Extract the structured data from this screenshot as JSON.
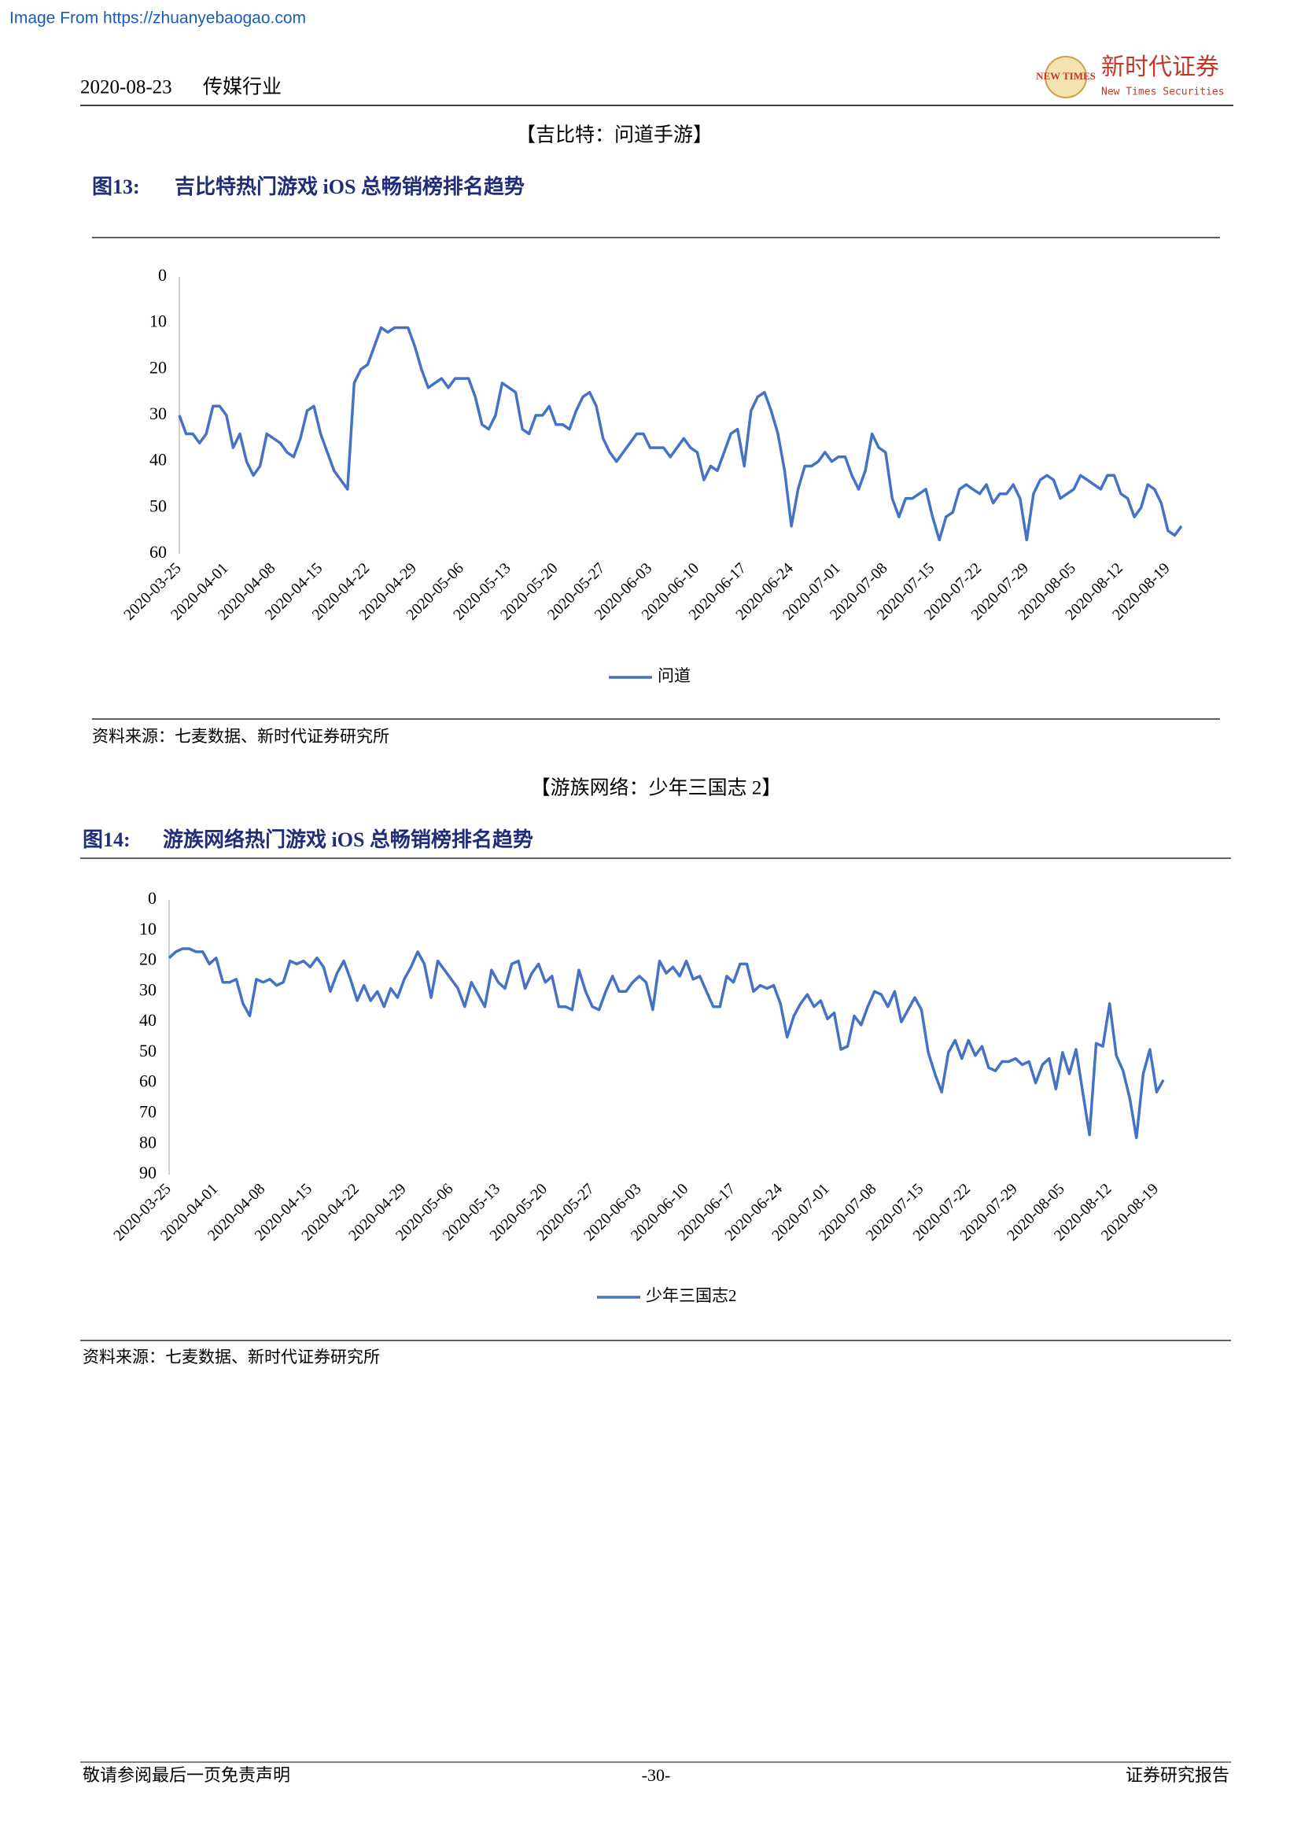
{
  "source_link": "Image From https://zhuanyebaogao.com",
  "header": {
    "date": "2020-08-23",
    "industry": "传媒行业",
    "logo_mark": "NEW TIMES",
    "logo_name": "新时代证券",
    "logo_en": "New Times Securities"
  },
  "sections": [
    {
      "heading": "【吉比特：问道手游】",
      "figure_label": "图13:",
      "figure_title": "吉比特热门游戏 iOS 总畅销榜排名趋势",
      "source": "资料来源：七麦数据、新时代证券研究所"
    },
    {
      "heading": "【游族网络：少年三国志 2】",
      "figure_label": "图14:",
      "figure_title": "游族网络热门游戏 iOS 总畅销榜排名趋势",
      "source": "资料来源：七麦数据、新时代证券研究所"
    }
  ],
  "chart_data": [
    {
      "type": "line",
      "y_inverted": true,
      "grid": false,
      "legend": "bottom",
      "ylim": [
        0,
        60
      ],
      "yticks": [
        0,
        10,
        20,
        30,
        40,
        50,
        60
      ],
      "categories": [
        "2020-03-25",
        null,
        null,
        null,
        null,
        null,
        null,
        "2020-04-01",
        null,
        null,
        null,
        null,
        null,
        null,
        "2020-04-08",
        null,
        null,
        null,
        null,
        null,
        null,
        "2020-04-15",
        null,
        null,
        null,
        null,
        null,
        null,
        "2020-04-22",
        null,
        null,
        null,
        null,
        null,
        null,
        "2020-04-29",
        null,
        null,
        null,
        null,
        null,
        null,
        "2020-05-06",
        null,
        null,
        null,
        null,
        null,
        null,
        "2020-05-13",
        null,
        null,
        null,
        null,
        null,
        null,
        "2020-05-20",
        null,
        null,
        null,
        null,
        null,
        null,
        "2020-05-27",
        null,
        null,
        null,
        null,
        null,
        null,
        "2020-06-03",
        null,
        null,
        null,
        null,
        null,
        null,
        "2020-06-10",
        null,
        null,
        null,
        null,
        null,
        null,
        "2020-06-17",
        null,
        null,
        null,
        null,
        null,
        null,
        "2020-06-24",
        null,
        null,
        null,
        null,
        null,
        null,
        "2020-07-01",
        null,
        null,
        null,
        null,
        null,
        null,
        "2020-07-08",
        null,
        null,
        null,
        null,
        null,
        null,
        "2020-07-15",
        null,
        null,
        null,
        null,
        null,
        null,
        "2020-07-22",
        null,
        null,
        null,
        null,
        null,
        null,
        "2020-07-29",
        null,
        null,
        null,
        null,
        null,
        null,
        "2020-08-05",
        null,
        null,
        null,
        null,
        null,
        null,
        "2020-08-12",
        null,
        null,
        null,
        null,
        null,
        null,
        "2020-08-19",
        null,
        null
      ],
      "series": [
        {
          "name": "问道",
          "color": "#4472c4",
          "values": [
            30,
            34,
            34,
            36,
            34,
            28,
            28,
            30,
            37,
            34,
            40,
            43,
            41,
            34,
            35,
            36,
            38,
            39,
            35,
            29,
            28,
            34,
            38,
            42,
            44,
            46,
            23,
            20,
            19,
            15,
            11,
            12,
            11,
            11,
            11,
            15,
            20,
            24,
            23,
            22,
            24,
            22,
            22,
            22,
            26,
            32,
            33,
            30,
            23,
            24,
            25,
            33,
            34,
            30,
            30,
            28,
            32,
            32,
            33,
            29,
            26,
            25,
            28,
            35,
            38,
            40,
            38,
            36,
            34,
            34,
            37,
            37,
            37,
            39,
            37,
            35,
            37,
            38,
            44,
            41,
            42,
            38,
            34,
            33,
            41,
            29,
            26,
            25,
            29,
            34,
            42,
            54,
            46,
            41,
            41,
            40,
            38,
            40,
            39,
            39,
            43,
            46,
            42,
            34,
            37,
            38,
            48,
            52,
            48,
            48,
            47,
            46,
            52,
            57,
            52,
            51,
            46,
            45,
            46,
            47,
            45,
            49,
            47,
            47,
            45,
            48,
            57,
            47,
            44,
            43,
            44,
            48,
            47,
            46,
            43,
            44,
            45,
            46,
            43,
            43,
            47,
            48,
            52,
            50,
            45,
            46,
            49,
            55,
            56,
            54
          ]
        }
      ]
    },
    {
      "type": "line",
      "y_inverted": true,
      "grid": false,
      "legend": "bottom",
      "ylim": [
        0,
        90
      ],
      "yticks": [
        0,
        10,
        20,
        30,
        40,
        50,
        60,
        70,
        80,
        90
      ],
      "categories": [
        "2020-03-25",
        null,
        null,
        null,
        null,
        null,
        null,
        "2020-04-01",
        null,
        null,
        null,
        null,
        null,
        null,
        "2020-04-08",
        null,
        null,
        null,
        null,
        null,
        null,
        "2020-04-15",
        null,
        null,
        null,
        null,
        null,
        null,
        "2020-04-22",
        null,
        null,
        null,
        null,
        null,
        null,
        "2020-04-29",
        null,
        null,
        null,
        null,
        null,
        null,
        "2020-05-06",
        null,
        null,
        null,
        null,
        null,
        null,
        "2020-05-13",
        null,
        null,
        null,
        null,
        null,
        null,
        "2020-05-20",
        null,
        null,
        null,
        null,
        null,
        null,
        "2020-05-27",
        null,
        null,
        null,
        null,
        null,
        null,
        "2020-06-03",
        null,
        null,
        null,
        null,
        null,
        null,
        "2020-06-10",
        null,
        null,
        null,
        null,
        null,
        null,
        "2020-06-17",
        null,
        null,
        null,
        null,
        null,
        null,
        "2020-06-24",
        null,
        null,
        null,
        null,
        null,
        null,
        "2020-07-01",
        null,
        null,
        null,
        null,
        null,
        null,
        "2020-07-08",
        null,
        null,
        null,
        null,
        null,
        null,
        "2020-07-15",
        null,
        null,
        null,
        null,
        null,
        null,
        "2020-07-22",
        null,
        null,
        null,
        null,
        null,
        null,
        "2020-07-29",
        null,
        null,
        null,
        null,
        null,
        null,
        "2020-08-05",
        null,
        null,
        null,
        null,
        null,
        null,
        "2020-08-12",
        null,
        null,
        null,
        null,
        null,
        null,
        "2020-08-19",
        null
      ],
      "series": [
        {
          "name": "少年三国志2",
          "color": "#4472c4",
          "values": [
            19,
            17,
            16,
            16,
            17,
            17,
            21,
            19,
            27,
            27,
            26,
            34,
            38,
            26,
            27,
            26,
            28,
            27,
            20,
            21,
            20,
            22,
            19,
            22,
            30,
            24,
            20,
            26,
            33,
            28,
            33,
            30,
            35,
            29,
            32,
            26,
            22,
            17,
            21,
            32,
            20,
            23,
            26,
            29,
            35,
            27,
            31,
            35,
            23,
            27,
            29,
            21,
            20,
            29,
            24,
            21,
            27,
            25,
            35,
            35,
            36,
            23,
            30,
            35,
            36,
            30,
            25,
            30,
            30,
            27,
            25,
            27,
            36,
            20,
            24,
            22,
            25,
            20,
            26,
            25,
            30,
            35,
            35,
            25,
            27,
            21,
            21,
            30,
            28,
            29,
            28,
            34,
            45,
            38,
            34,
            31,
            35,
            33,
            39,
            37,
            49,
            48,
            38,
            41,
            35,
            30,
            31,
            35,
            30,
            40,
            36,
            32,
            36,
            50,
            57,
            63,
            50,
            46,
            52,
            46,
            51,
            48,
            55,
            56,
            53,
            53,
            52,
            54,
            53,
            60,
            54,
            52,
            62,
            50,
            57,
            49,
            63,
            77,
            47,
            48,
            34,
            51,
            56,
            65,
            78,
            57,
            49,
            63,
            59
          ]
        }
      ]
    }
  ],
  "footer": {
    "disclaimer": "敬请参阅最后一页免责声明",
    "page": "-30-",
    "report_type": "证券研究报告"
  }
}
